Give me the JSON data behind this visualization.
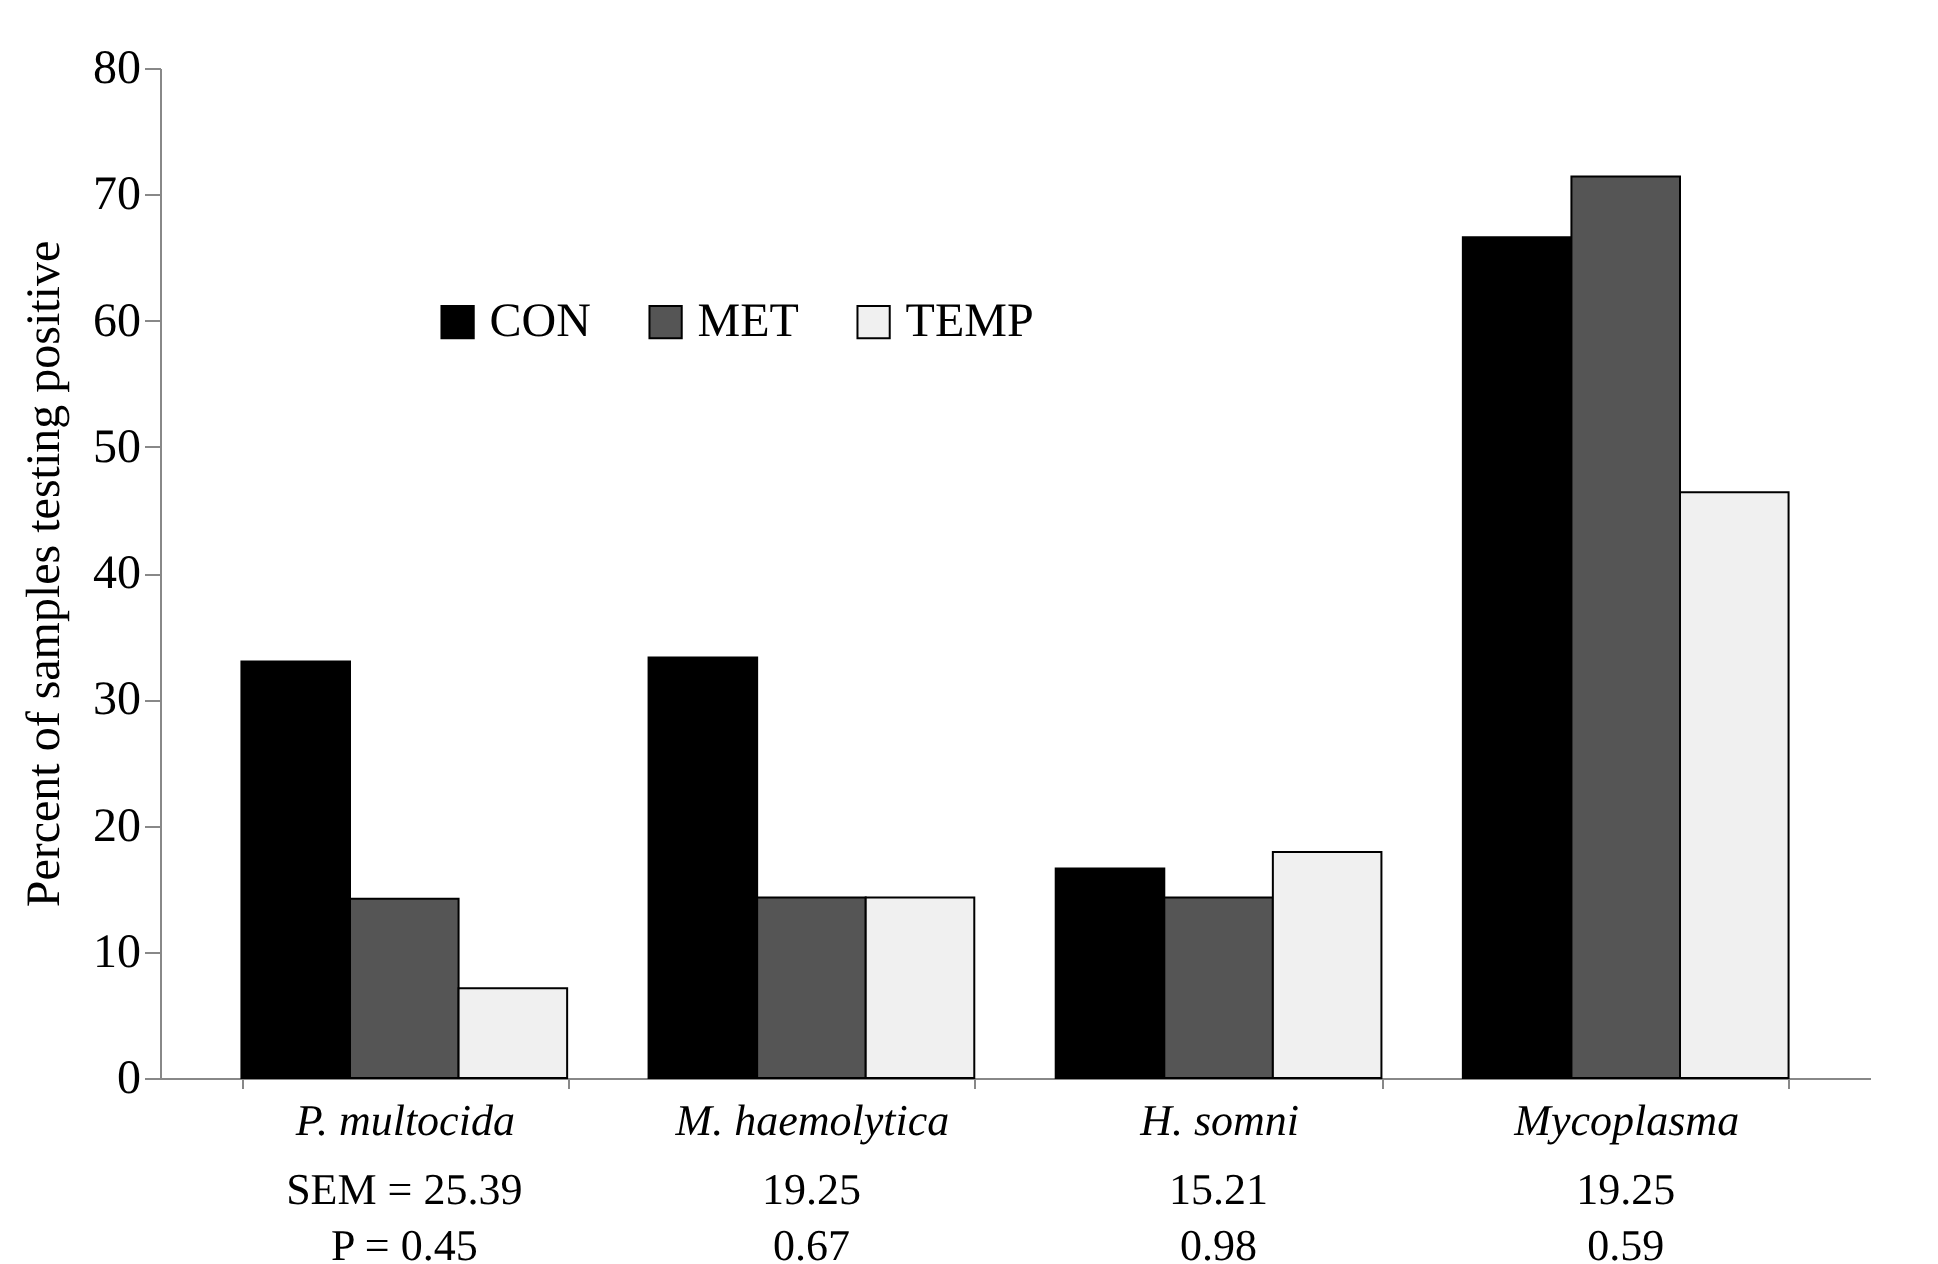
{
  "chart_data": {
    "type": "bar",
    "ylabel": "Percent of samples testing positive",
    "categories": [
      "P. multocida",
      "M. haemolytica",
      "H. somni",
      "Mycoplasma"
    ],
    "series": [
      {
        "name": "CON",
        "color": "#000000",
        "values": [
          33.0,
          33.3,
          16.6,
          66.6
        ]
      },
      {
        "name": "MET",
        "color": "#555555",
        "values": [
          14.2,
          14.3,
          14.3,
          71.4
        ]
      },
      {
        "name": "TEMP",
        "color": "#f0f0f0",
        "values": [
          7.1,
          14.3,
          17.9,
          46.4
        ]
      }
    ],
    "ylim": [
      0,
      80
    ],
    "yticks": [
      0,
      10,
      20,
      30,
      40,
      50,
      60,
      70,
      80
    ],
    "grid": false,
    "legend": "top",
    "annotations": [
      "SEM = 25.39",
      "19.25",
      "15.21",
      "19.25",
      "P = 0.45",
      "0.67",
      "0.98",
      "0.59"
    ]
  }
}
